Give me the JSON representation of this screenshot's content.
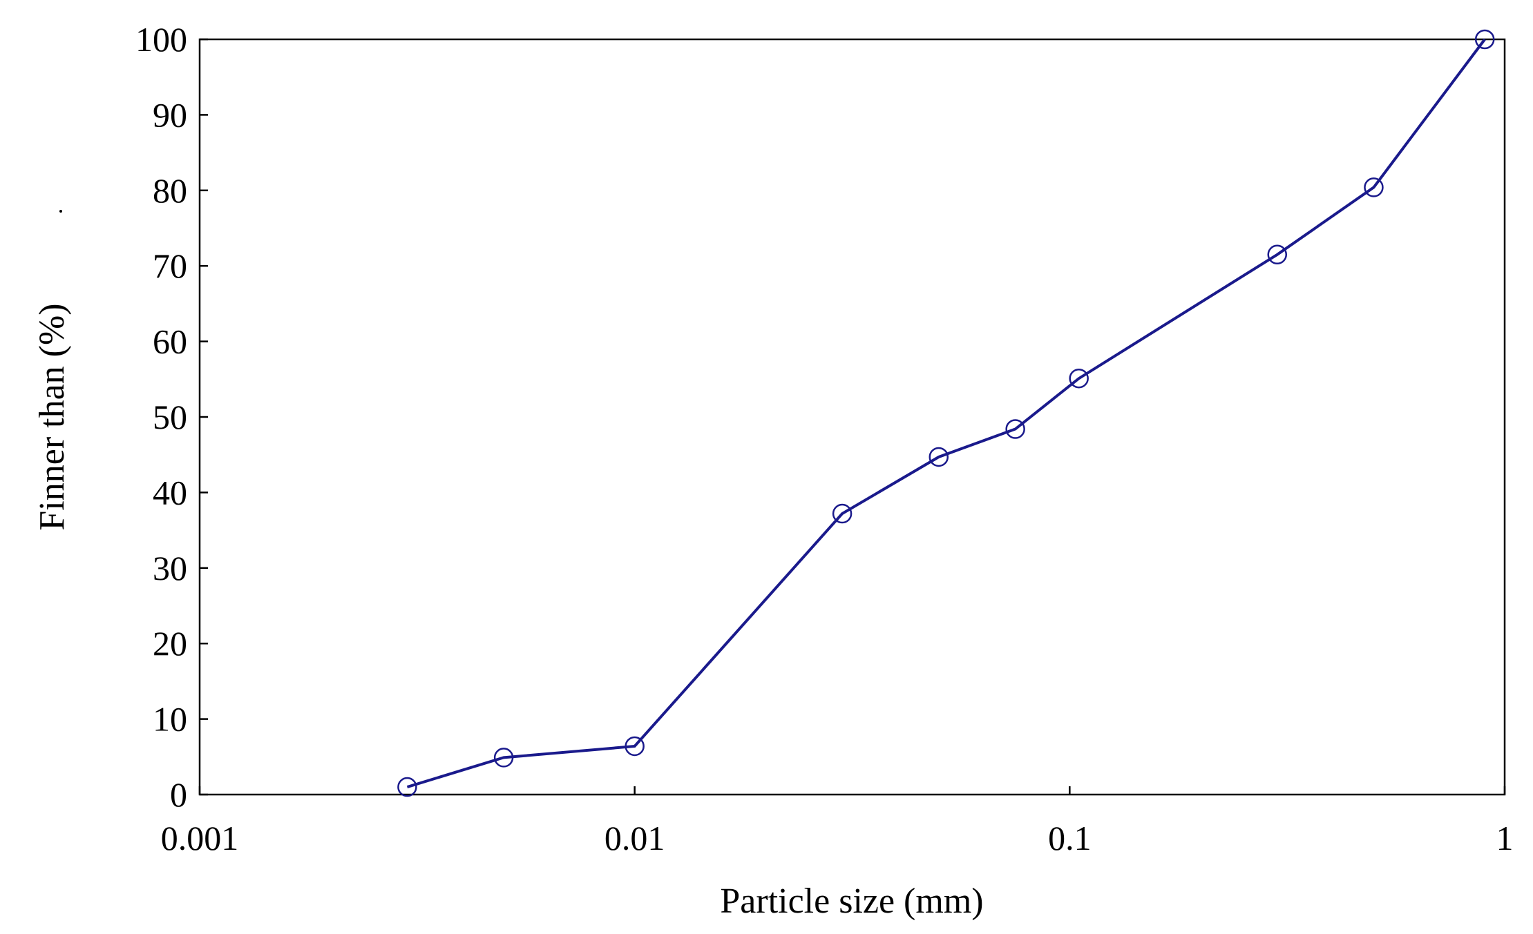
{
  "chart_data": {
    "type": "line",
    "title": "",
    "xlabel": "Particle size (mm)",
    "ylabel": "Finner than (%)",
    "xscale": "log",
    "xlim": [
      0.001,
      1
    ],
    "ylim": [
      0,
      100
    ],
    "xticks": [
      0.001,
      0.01,
      0.1,
      1
    ],
    "xtick_labels": [
      "0.001",
      "0.01",
      "0.1",
      "1"
    ],
    "yticks": [
      0,
      10,
      20,
      30,
      40,
      50,
      60,
      70,
      80,
      90,
      100
    ],
    "ytick_labels": [
      "0",
      "10",
      "20",
      "30",
      "40",
      "50",
      "60",
      "70",
      "80",
      "90",
      "100"
    ],
    "grid": false,
    "legend": "none",
    "series": [
      {
        "color": "#1a1a8c",
        "marker": "open-circle",
        "x": [
          0.003,
          0.005,
          0.01,
          0.03,
          0.05,
          0.075,
          0.105,
          0.3,
          0.5,
          0.9
        ],
        "y": [
          1.0,
          4.9,
          6.4,
          37.2,
          44.7,
          48.4,
          55.1,
          71.5,
          80.4,
          100
        ]
      }
    ]
  }
}
